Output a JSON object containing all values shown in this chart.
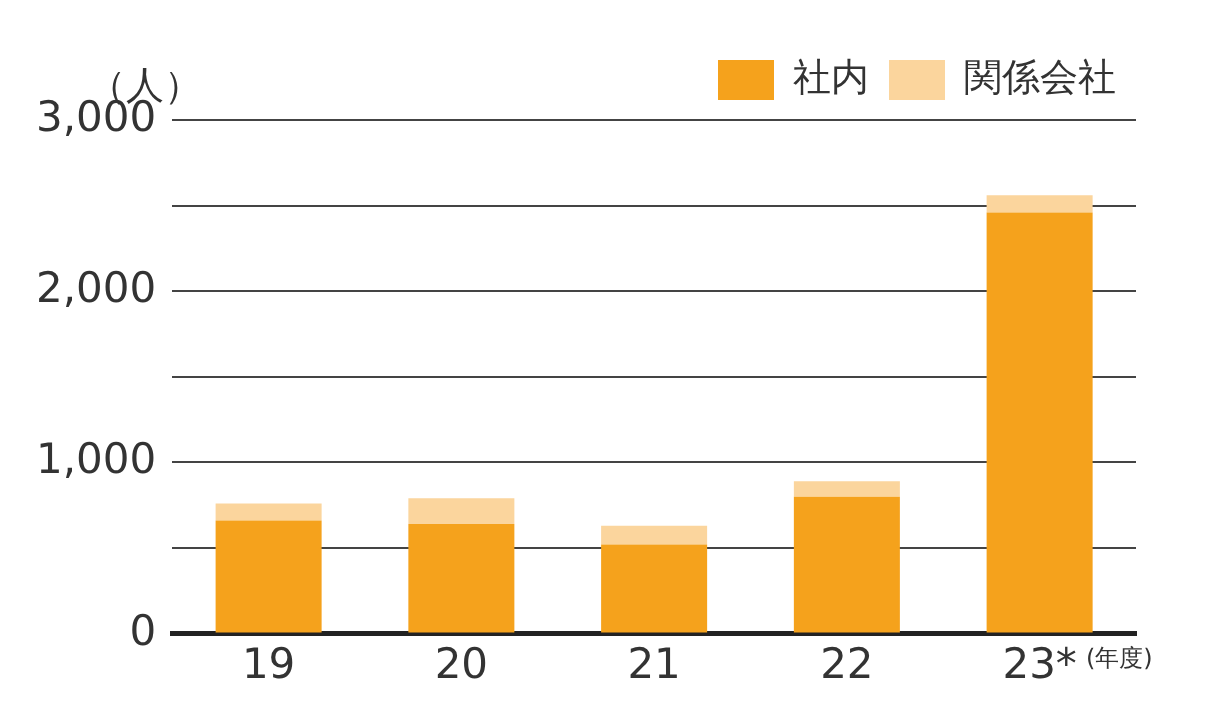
{
  "chart_data": {
    "type": "bar",
    "stacked": true,
    "ylabel": "（人）",
    "xlabel": "(年度)",
    "categories": [
      "19",
      "20",
      "21",
      "22",
      "23*"
    ],
    "series": [
      {
        "name": "社内",
        "color": "#f5a21c",
        "values": [
          660,
          640,
          520,
          800,
          2460
        ]
      },
      {
        "name": "関係会社",
        "color": "#fbd59d",
        "values": [
          100,
          150,
          110,
          90,
          100
        ]
      }
    ],
    "ylim": [
      0,
      3000
    ],
    "yticks": [
      0,
      {
        "value": 500,
        "label": null
      },
      {
        "value": 1000,
        "label": "1,000"
      },
      {
        "value": 1500,
        "label": null
      },
      {
        "value": 2000,
        "label": "2,000"
      },
      {
        "value": 2500,
        "label": null
      },
      {
        "value": 3000,
        "label": "3,000"
      }
    ],
    "grid": "y",
    "legend": "top right"
  }
}
